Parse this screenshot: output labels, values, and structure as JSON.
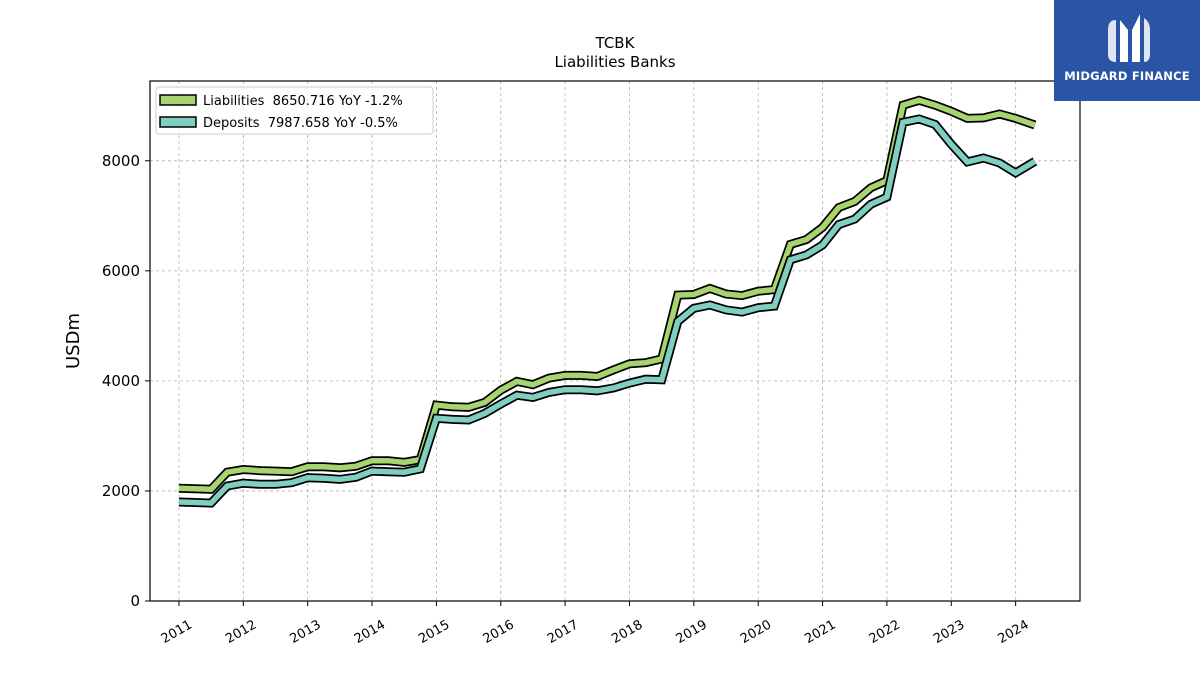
{
  "brand": {
    "name": "MIDGARD FINANCE",
    "logo_icon": "midgard-m-logo-icon",
    "color": "#2a55a6"
  },
  "chart_data": {
    "type": "line",
    "title": "TCBK",
    "subtitle": "Liabilities Banks",
    "ylabel": "USDm",
    "xlabel": "",
    "ylim": [
      0,
      9450
    ],
    "xlim": [
      2010.55,
      2025.0
    ],
    "yticks": [
      0,
      2000,
      4000,
      6000,
      8000
    ],
    "xticks": [
      "2011",
      "2012",
      "2013",
      "2014",
      "2015",
      "2016",
      "2017",
      "2018",
      "2019",
      "2020",
      "2021",
      "2022",
      "2023",
      "2024"
    ],
    "grid": true,
    "legend_position": "top-left",
    "series": [
      {
        "name": "Liabilities",
        "legend_label": "Liabilities  8650.716 YoY -1.2%",
        "color": "#a8d46f",
        "points": [
          [
            2011.0,
            2050
          ],
          [
            2011.25,
            2040
          ],
          [
            2011.5,
            2030
          ],
          [
            2011.75,
            2340
          ],
          [
            2012.0,
            2390
          ],
          [
            2012.25,
            2370
          ],
          [
            2012.5,
            2360
          ],
          [
            2012.75,
            2350
          ],
          [
            2013.0,
            2440
          ],
          [
            2013.25,
            2440
          ],
          [
            2013.5,
            2420
          ],
          [
            2013.75,
            2450
          ],
          [
            2014.0,
            2550
          ],
          [
            2014.25,
            2550
          ],
          [
            2014.5,
            2520
          ],
          [
            2014.75,
            2570
          ],
          [
            2015.0,
            3560
          ],
          [
            2015.25,
            3530
          ],
          [
            2015.5,
            3520
          ],
          [
            2015.75,
            3610
          ],
          [
            2016.0,
            3830
          ],
          [
            2016.25,
            3990
          ],
          [
            2016.5,
            3930
          ],
          [
            2016.75,
            4050
          ],
          [
            2017.0,
            4100
          ],
          [
            2017.25,
            4100
          ],
          [
            2017.5,
            4080
          ],
          [
            2017.75,
            4200
          ],
          [
            2018.0,
            4310
          ],
          [
            2018.25,
            4330
          ],
          [
            2018.5,
            4400
          ],
          [
            2018.75,
            5560
          ],
          [
            2019.0,
            5570
          ],
          [
            2019.25,
            5680
          ],
          [
            2019.5,
            5580
          ],
          [
            2019.75,
            5550
          ],
          [
            2020.0,
            5630
          ],
          [
            2020.25,
            5660
          ],
          [
            2020.5,
            6480
          ],
          [
            2020.75,
            6570
          ],
          [
            2021.0,
            6790
          ],
          [
            2021.25,
            7150
          ],
          [
            2021.5,
            7260
          ],
          [
            2021.75,
            7510
          ],
          [
            2022.0,
            7640
          ],
          [
            2022.25,
            9010
          ],
          [
            2022.5,
            9100
          ],
          [
            2022.75,
            9010
          ],
          [
            2023.0,
            8900
          ],
          [
            2023.25,
            8770
          ],
          [
            2023.5,
            8780
          ],
          [
            2023.75,
            8850
          ],
          [
            2024.0,
            8770
          ],
          [
            2024.3,
            8650
          ]
        ]
      },
      {
        "name": "Deposits",
        "legend_label": "Deposits  7987.658 YoY -0.5%",
        "color": "#7ecfc0",
        "points": [
          [
            2011.0,
            1800
          ],
          [
            2011.25,
            1790
          ],
          [
            2011.5,
            1780
          ],
          [
            2011.75,
            2090
          ],
          [
            2012.0,
            2140
          ],
          [
            2012.25,
            2120
          ],
          [
            2012.5,
            2120
          ],
          [
            2012.75,
            2150
          ],
          [
            2013.0,
            2240
          ],
          [
            2013.25,
            2230
          ],
          [
            2013.5,
            2210
          ],
          [
            2013.75,
            2250
          ],
          [
            2014.0,
            2360
          ],
          [
            2014.25,
            2350
          ],
          [
            2014.5,
            2340
          ],
          [
            2014.75,
            2400
          ],
          [
            2015.0,
            3320
          ],
          [
            2015.25,
            3300
          ],
          [
            2015.5,
            3290
          ],
          [
            2015.75,
            3410
          ],
          [
            2016.0,
            3580
          ],
          [
            2016.25,
            3740
          ],
          [
            2016.5,
            3700
          ],
          [
            2016.75,
            3790
          ],
          [
            2017.0,
            3840
          ],
          [
            2017.25,
            3840
          ],
          [
            2017.5,
            3820
          ],
          [
            2017.75,
            3870
          ],
          [
            2018.0,
            3960
          ],
          [
            2018.25,
            4030
          ],
          [
            2018.5,
            4020
          ],
          [
            2018.75,
            5080
          ],
          [
            2019.0,
            5320
          ],
          [
            2019.25,
            5380
          ],
          [
            2019.5,
            5290
          ],
          [
            2019.75,
            5250
          ],
          [
            2020.0,
            5330
          ],
          [
            2020.25,
            5360
          ],
          [
            2020.5,
            6200
          ],
          [
            2020.75,
            6290
          ],
          [
            2021.0,
            6470
          ],
          [
            2021.25,
            6840
          ],
          [
            2021.5,
            6940
          ],
          [
            2021.75,
            7210
          ],
          [
            2022.0,
            7340
          ],
          [
            2022.25,
            8700
          ],
          [
            2022.5,
            8760
          ],
          [
            2022.75,
            8660
          ],
          [
            2023.0,
            8300
          ],
          [
            2023.25,
            7980
          ],
          [
            2023.5,
            8050
          ],
          [
            2023.75,
            7960
          ],
          [
            2024.0,
            7780
          ],
          [
            2024.3,
            7988
          ]
        ]
      }
    ]
  }
}
